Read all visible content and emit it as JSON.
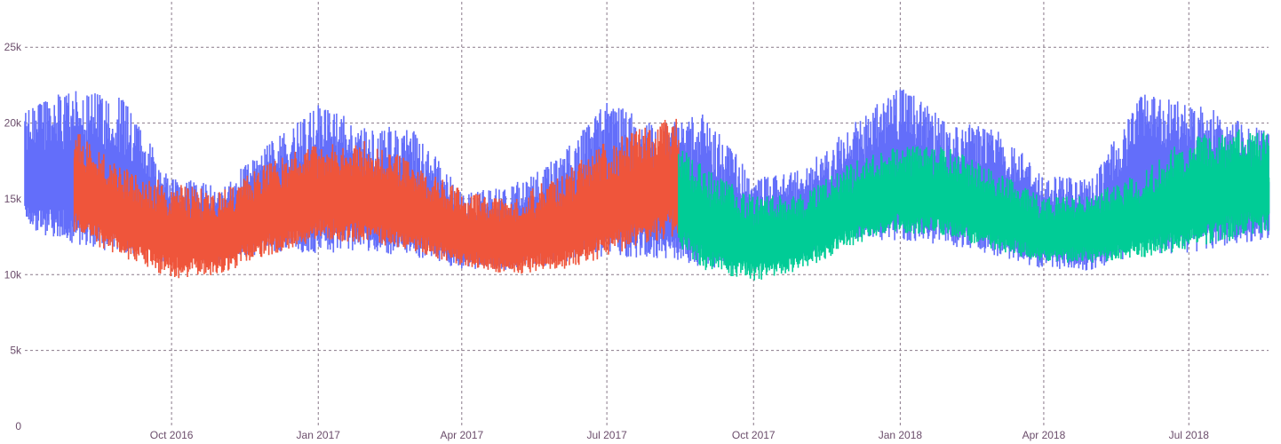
{
  "chart_data": {
    "type": "line",
    "title": "",
    "xlabel": "",
    "ylabel": "",
    "x_range": [
      "2016-07-01",
      "2018-08-20"
    ],
    "ylim": [
      0,
      28000
    ],
    "grid": true,
    "legend": "none",
    "x_ticks": [
      {
        "date": "2016-10-01",
        "label": "Oct 2016"
      },
      {
        "date": "2017-01-01",
        "label": "Jan 2017"
      },
      {
        "date": "2017-04-01",
        "label": "Apr 2017"
      },
      {
        "date": "2017-07-01",
        "label": "Jul 2017"
      },
      {
        "date": "2017-10-01",
        "label": "Oct 2017"
      },
      {
        "date": "2018-01-01",
        "label": "Jan 2018"
      },
      {
        "date": "2018-04-01",
        "label": "Apr 2018"
      },
      {
        "date": "2018-07-01",
        "label": "Jul 2018"
      }
    ],
    "y_ticks": [
      {
        "value": 0,
        "label": "0"
      },
      {
        "value": 5000,
        "label": "5k"
      },
      {
        "value": 10000,
        "label": "10k"
      },
      {
        "value": 15000,
        "label": "15k"
      },
      {
        "value": 20000,
        "label": "20k"
      },
      {
        "value": 25000,
        "label": "25k"
      }
    ],
    "series": [
      {
        "color": "#636efa",
        "x_start": "2016-07-01",
        "x_end": "2018-08-20",
        "envelope": [
          {
            "date": "2016-07-01",
            "min": 12600,
            "max": 21000
          },
          {
            "date": "2016-08-01",
            "min": 11600,
            "max": 22300
          },
          {
            "date": "2016-09-01",
            "min": 10900,
            "max": 21800
          },
          {
            "date": "2016-10-01",
            "min": 10400,
            "max": 16500
          },
          {
            "date": "2016-11-01",
            "min": 10500,
            "max": 15800
          },
          {
            "date": "2016-12-01",
            "min": 11200,
            "max": 18800
          },
          {
            "date": "2017-01-01",
            "min": 11000,
            "max": 21400
          },
          {
            "date": "2017-02-01",
            "min": 11200,
            "max": 19700
          },
          {
            "date": "2017-03-01",
            "min": 10700,
            "max": 19800
          },
          {
            "date": "2017-04-01",
            "min": 10200,
            "max": 15500
          },
          {
            "date": "2017-05-01",
            "min": 10000,
            "max": 15800
          },
          {
            "date": "2017-06-01",
            "min": 10400,
            "max": 17800
          },
          {
            "date": "2017-07-01",
            "min": 10700,
            "max": 21600
          },
          {
            "date": "2017-08-01",
            "min": 10700,
            "max": 20000
          },
          {
            "date": "2017-09-01",
            "min": 10000,
            "max": 20800
          },
          {
            "date": "2017-10-01",
            "min": 10000,
            "max": 16400
          },
          {
            "date": "2017-11-01",
            "min": 10900,
            "max": 17000
          },
          {
            "date": "2017-12-01",
            "min": 12000,
            "max": 19800
          },
          {
            "date": "2018-01-01",
            "min": 11700,
            "max": 22600
          },
          {
            "date": "2018-02-01",
            "min": 11600,
            "max": 20000
          },
          {
            "date": "2018-03-01",
            "min": 10900,
            "max": 20000
          },
          {
            "date": "2018-04-01",
            "min": 10100,
            "max": 16600
          },
          {
            "date": "2018-05-01",
            "min": 10000,
            "max": 16300
          },
          {
            "date": "2018-06-01",
            "min": 10900,
            "max": 22000
          },
          {
            "date": "2018-07-01",
            "min": 11000,
            "max": 21500
          },
          {
            "date": "2018-08-20",
            "min": 12000,
            "max": 19500
          }
        ]
      },
      {
        "color": "#ef553b",
        "x_start": "2016-08-01",
        "x_end": "2017-08-15",
        "envelope": [
          {
            "date": "2016-08-01",
            "min": 12300,
            "max": 19800
          },
          {
            "date": "2016-09-01",
            "min": 10800,
            "max": 17200
          },
          {
            "date": "2016-10-01",
            "min": 9400,
            "max": 16200
          },
          {
            "date": "2016-11-01",
            "min": 9800,
            "max": 15600
          },
          {
            "date": "2016-12-01",
            "min": 11000,
            "max": 17800
          },
          {
            "date": "2017-01-01",
            "min": 12000,
            "max": 18700
          },
          {
            "date": "2017-02-01",
            "min": 11800,
            "max": 19000
          },
          {
            "date": "2017-03-01",
            "min": 11300,
            "max": 17600
          },
          {
            "date": "2017-04-01",
            "min": 10300,
            "max": 15700
          },
          {
            "date": "2017-05-01",
            "min": 9800,
            "max": 15000
          },
          {
            "date": "2017-06-01",
            "min": 10000,
            "max": 16800
          },
          {
            "date": "2017-07-01",
            "min": 10800,
            "max": 19000
          },
          {
            "date": "2017-08-15",
            "min": 12300,
            "max": 20700
          }
        ]
      },
      {
        "color": "#00cc96",
        "x_start": "2017-08-15",
        "x_end": "2018-08-20",
        "envelope": [
          {
            "date": "2017-08-15",
            "min": 11500,
            "max": 18700
          },
          {
            "date": "2017-09-01",
            "min": 10000,
            "max": 17200
          },
          {
            "date": "2017-10-01",
            "min": 9200,
            "max": 15300
          },
          {
            "date": "2017-11-01",
            "min": 10100,
            "max": 15500
          },
          {
            "date": "2017-12-01",
            "min": 11600,
            "max": 17500
          },
          {
            "date": "2018-01-01",
            "min": 12500,
            "max": 18800
          },
          {
            "date": "2018-02-01",
            "min": 12200,
            "max": 18500
          },
          {
            "date": "2018-03-01",
            "min": 11400,
            "max": 17000
          },
          {
            "date": "2018-04-01",
            "min": 10600,
            "max": 15200
          },
          {
            "date": "2018-05-01",
            "min": 10600,
            "max": 15500
          },
          {
            "date": "2018-06-01",
            "min": 10800,
            "max": 17000
          },
          {
            "date": "2018-07-01",
            "min": 11300,
            "max": 19300
          },
          {
            "date": "2018-08-20",
            "min": 12500,
            "max": 20000
          }
        ]
      }
    ]
  }
}
